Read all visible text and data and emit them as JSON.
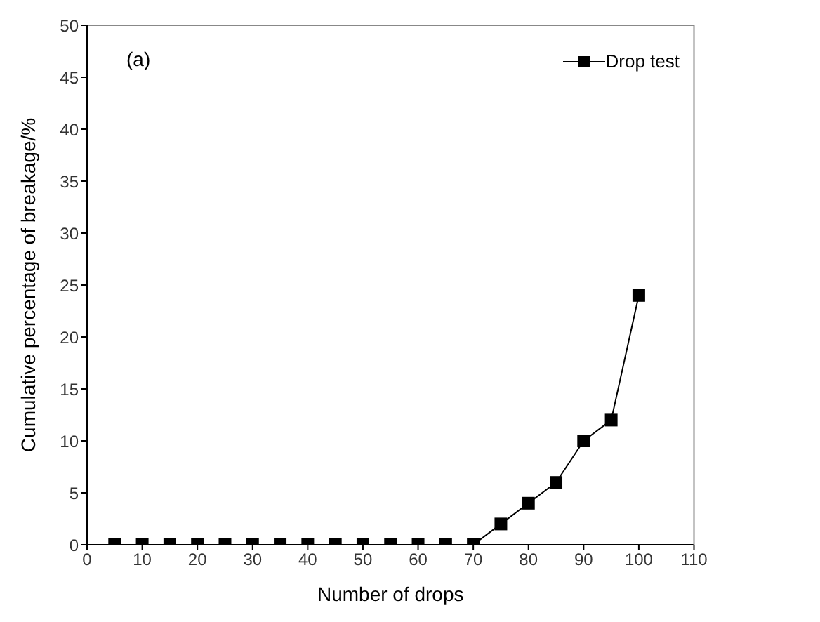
{
  "chart_data": {
    "type": "line",
    "xlabel": "Number of drops",
    "ylabel": "Cumulative percentage of breakage/%",
    "annotations": [
      "(a)"
    ],
    "x": [
      5,
      10,
      15,
      20,
      25,
      30,
      35,
      40,
      45,
      50,
      55,
      60,
      65,
      70,
      75,
      80,
      85,
      90,
      95,
      100
    ],
    "series": [
      {
        "name": "Drop test",
        "color": "#000000",
        "values": [
          0,
          0,
          0,
          0,
          0,
          0,
          0,
          0,
          0,
          0,
          0,
          0,
          0,
          0,
          2,
          4,
          6,
          10,
          12,
          24
        ]
      }
    ],
    "xlim": [
      0,
      110
    ],
    "xticks": [
      0,
      10,
      20,
      30,
      40,
      50,
      60,
      70,
      80,
      90,
      100,
      110
    ],
    "ylim": [
      0,
      50
    ],
    "yticks": [
      0,
      5,
      10,
      15,
      20,
      25,
      30,
      35,
      40,
      45,
      50
    ],
    "grid": false,
    "legend": "top right",
    "marker": "square",
    "line_style": "solid"
  }
}
